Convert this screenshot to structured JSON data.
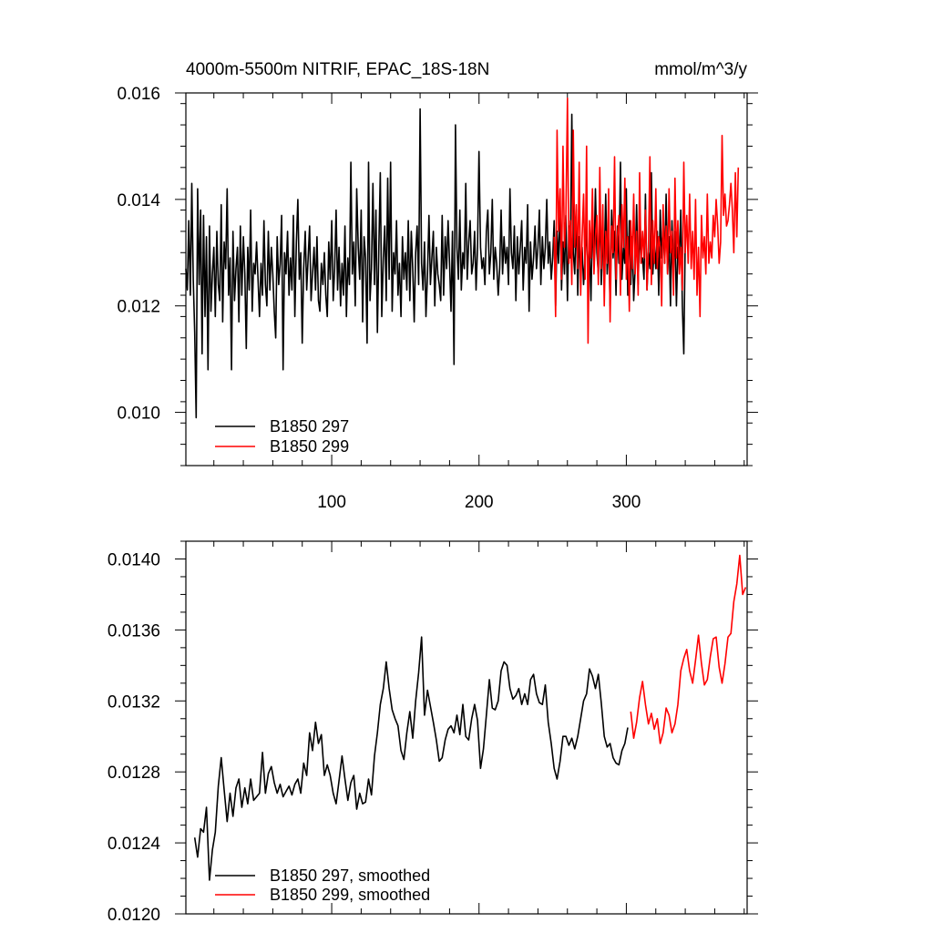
{
  "chart_data": [
    {
      "type": "line",
      "title": "4000m-5500m NITRIF, EPAC_18S-18N",
      "units": "mmol/m^3/y",
      "xlim": [
        1,
        382
      ],
      "ylim": [
        0.009,
        0.016
      ],
      "xticks": [
        100,
        200,
        300
      ],
      "xtick_labels": [
        "100",
        "200",
        "300"
      ],
      "yticks": [
        0.01,
        0.012,
        0.014,
        0.016
      ],
      "ytick_labels": [
        "0.010",
        "0.012",
        "0.014",
        "0.016"
      ],
      "grid": false,
      "legend_position": "bottom-left",
      "series": [
        {
          "name": "B1850 297",
          "color": "#000000",
          "x_start": 1,
          "values": [
            0.0127,
            0.0123,
            0.0136,
            0.0122,
            0.0143,
            0.0125,
            0.0115,
            0.0099,
            0.0142,
            0.0124,
            0.0138,
            0.0111,
            0.0137,
            0.0118,
            0.0133,
            0.0108,
            0.0135,
            0.0119,
            0.0126,
            0.0131,
            0.0118,
            0.0134,
            0.0124,
            0.0121,
            0.0139,
            0.0117,
            0.0132,
            0.0127,
            0.0142,
            0.0122,
            0.0129,
            0.0108,
            0.0134,
            0.0121,
            0.0127,
            0.0131,
            0.0117,
            0.0135,
            0.0122,
            0.0133,
            0.0126,
            0.0112,
            0.0131,
            0.0123,
            0.0138,
            0.0119,
            0.0128,
            0.0126,
            0.0132,
            0.0125,
            0.0118,
            0.0128,
            0.0122,
            0.0136,
            0.0124,
            0.012,
            0.0134,
            0.0123,
            0.0131,
            0.0126,
            0.0119,
            0.0114,
            0.0133,
            0.0124,
            0.0128,
            0.0137,
            0.0108,
            0.013,
            0.0126,
            0.0134,
            0.0122,
            0.0129,
            0.0123,
            0.0137,
            0.0118,
            0.0132,
            0.014,
            0.0125,
            0.013,
            0.0113,
            0.0127,
            0.0134,
            0.0123,
            0.0129,
            0.0135,
            0.0121,
            0.0126,
            0.0131,
            0.0123,
            0.0133,
            0.0121,
            0.0119,
            0.0128,
            0.0124,
            0.013,
            0.0122,
            0.0118,
            0.0132,
            0.0125,
            0.0136,
            0.0121,
            0.0127,
            0.0138,
            0.0123,
            0.0131,
            0.012,
            0.0128,
            0.0122,
            0.0135,
            0.0118,
            0.0129,
            0.0124,
            0.0147,
            0.0126,
            0.0132,
            0.012,
            0.0142,
            0.0131,
            0.0125,
            0.0138,
            0.0117,
            0.0133,
            0.0129,
            0.0113,
            0.0147,
            0.0121,
            0.0127,
            0.0143,
            0.0124,
            0.0138,
            0.0115,
            0.0131,
            0.0145,
            0.0118,
            0.0129,
            0.0135,
            0.0121,
            0.0144,
            0.0125,
            0.0147,
            0.0119,
            0.013,
            0.0126,
            0.0136,
            0.0122,
            0.0128,
            0.0118,
            0.0133,
            0.0125,
            0.013,
            0.0123,
            0.0136,
            0.0121,
            0.0134,
            0.0127,
            0.0117,
            0.013,
            0.0135,
            0.0124,
            0.0157,
            0.0128,
            0.0123,
            0.0132,
            0.0118,
            0.0126,
            0.0137,
            0.0124,
            0.0129,
            0.0134,
            0.012,
            0.0131,
            0.0126,
            0.0124,
            0.0121,
            0.0137,
            0.0122,
            0.0133,
            0.0127,
            0.0136,
            0.0128,
            0.0119,
            0.0134,
            0.0109,
            0.0154,
            0.0131,
            0.0125,
            0.0138,
            0.0123,
            0.013,
            0.0127,
            0.0143,
            0.0125,
            0.0132,
            0.0136,
            0.0126,
            0.0128,
            0.0134,
            0.0123,
            0.0131,
            0.0149,
            0.0131,
            0.0127,
            0.0129,
            0.0124,
            0.0134,
            0.0138,
            0.0126,
            0.013,
            0.014,
            0.0125,
            0.0131,
            0.0128,
            0.0122,
            0.0127,
            0.0138,
            0.0126,
            0.0133,
            0.0128,
            0.0131,
            0.0124,
            0.0142,
            0.013,
            0.0127,
            0.0135,
            0.0121,
            0.0133,
            0.0126,
            0.0131,
            0.0136,
            0.0123,
            0.0131,
            0.0128,
            0.0139,
            0.0119,
            0.0132,
            0.0125,
            0.0129,
            0.0135,
            0.0127,
            0.0131,
            0.0138,
            0.0124,
            0.0133,
            0.0127,
            0.0131,
            0.014,
            0.0128,
            0.0132,
            0.0125,
            0.0129,
            0.0136,
            0.012,
            0.0134,
            0.0128,
            0.0139,
            0.0123,
            0.0132,
            0.0126,
            0.0137,
            0.0121,
            0.0135,
            0.0129,
            0.0156,
            0.013,
            0.0126,
            0.0138,
            0.0122,
            0.0133,
            0.0127,
            0.0131,
            0.0124,
            0.0129,
            0.0135,
            0.0126,
            0.0131,
            0.0121,
            0.0136,
            0.0128,
            0.0142,
            0.013,
            0.0126,
            0.0139,
            0.0124,
            0.0132,
            0.0128,
            0.0141,
            0.0126,
            0.0133,
            0.012,
            0.0138,
            0.0129,
            0.0134,
            0.0122,
            0.0135,
            0.0128,
            0.0147,
            0.0125,
            0.0131,
            0.0128,
            0.0142,
            0.0122,
            0.0136,
            0.0124,
            0.0133,
            0.0121,
            0.0127,
            0.0139,
            0.0124,
            0.0135,
            0.0128,
            0.0129,
            0.0125,
            0.0141,
            0.0123,
            0.013,
            0.0127,
            0.0145,
            0.0126,
            0.0132,
            0.0127,
            0.0134,
            0.0122,
            0.0138,
            0.0129,
            0.0135,
            0.0128,
            0.0141,
            0.0126,
            0.0133,
            0.012,
            0.0136,
            0.0127,
            0.0134,
            0.012,
            0.0131,
            0.0129,
            0.0138,
            0.012,
            0.0111,
            0.0133
          ]
        },
        {
          "name": "B1850 299",
          "color": "#ff0000",
          "x_start": 251,
          "values": [
            0.0133,
            0.0118,
            0.0153,
            0.0134,
            0.0142,
            0.0125,
            0.015,
            0.0131,
            0.0137,
            0.0159,
            0.0128,
            0.0136,
            0.0124,
            0.0153,
            0.0131,
            0.0139,
            0.0127,
            0.0147,
            0.0122,
            0.0133,
            0.0141,
            0.0125,
            0.015,
            0.0113,
            0.0136,
            0.0129,
            0.0142,
            0.0126,
            0.0133,
            0.0137,
            0.0124,
            0.0146,
            0.0127,
            0.0139,
            0.012,
            0.0134,
            0.0128,
            0.0142,
            0.0117,
            0.0135,
            0.013,
            0.0148,
            0.0125,
            0.0133,
            0.0137,
            0.0122,
            0.0139,
            0.0131,
            0.0144,
            0.0125,
            0.0133,
            0.0119,
            0.0136,
            0.0127,
            0.0141,
            0.0126,
            0.0134,
            0.0122,
            0.0145,
            0.0128,
            0.0134,
            0.0129,
            0.0138,
            0.0123,
            0.0131,
            0.0148,
            0.0124,
            0.0136,
            0.0128,
            0.0142,
            0.0127,
            0.0133,
            0.0131,
            0.012,
            0.0139,
            0.0128,
            0.0135,
            0.0126,
            0.0142,
            0.013,
            0.0134,
            0.0122,
            0.0144,
            0.0129,
            0.0136,
            0.0126,
            0.0131,
            0.0123,
            0.0147,
            0.013,
            0.0137,
            0.0128,
            0.0141,
            0.0127,
            0.0134,
            0.0125,
            0.014,
            0.0122,
            0.0131,
            0.0118,
            0.0137,
            0.0129,
            0.0133,
            0.0126,
            0.0141,
            0.0128,
            0.0132,
            0.0129,
            0.0137,
            0.0133,
            0.014,
            0.0135,
            0.0128,
            0.0132,
            0.0152,
            0.0137,
            0.0141,
            0.0135,
            0.0136,
            0.0139,
            0.0143,
            0.0138,
            0.013,
            0.0145,
            0.0133,
            0.0146
          ]
        }
      ]
    },
    {
      "type": "line",
      "title": "",
      "xlim": [
        1,
        382
      ],
      "ylim": [
        0.012,
        0.0141
      ],
      "xticks": [
        100,
        200,
        300
      ],
      "xtick_labels": [],
      "yticks": [
        0.012,
        0.0124,
        0.0128,
        0.0132,
        0.0136,
        0.014
      ],
      "ytick_labels": [
        "0.0120",
        "0.0124",
        "0.0128",
        "0.0132",
        "0.0136",
        "0.0140"
      ],
      "grid": false,
      "legend_position": "bottom-left",
      "series": [
        {
          "name": "B1850 297, smoothed",
          "color": "#000000",
          "x": [
            7,
            9,
            11,
            13,
            15,
            17,
            19,
            21,
            23,
            25,
            27,
            29,
            31,
            33,
            35,
            37,
            39,
            41,
            43,
            45,
            47,
            49,
            51,
            53,
            55,
            57,
            59,
            61,
            63,
            65,
            67,
            69,
            71,
            73,
            75,
            77,
            79,
            81,
            83,
            85,
            87,
            89,
            91,
            93,
            95,
            97,
            99,
            101,
            103,
            105,
            107,
            109,
            111,
            113,
            115,
            117,
            119,
            121,
            123,
            125,
            127,
            129,
            131,
            133,
            135,
            137,
            139,
            141,
            143,
            145,
            147,
            149,
            151,
            153,
            155,
            157,
            159,
            161,
            163,
            165,
            167,
            169,
            171,
            173,
            175,
            177,
            179,
            181,
            183,
            185,
            187,
            189,
            191,
            193,
            195,
            197,
            199,
            201,
            203,
            205,
            207,
            209,
            211,
            213,
            215,
            217,
            219,
            221,
            223,
            225,
            227,
            229,
            231,
            233,
            235,
            237,
            239,
            241,
            243,
            245,
            247,
            249,
            251,
            253,
            255,
            257,
            259,
            261,
            263,
            265,
            267,
            269,
            271,
            273,
            275,
            277,
            279,
            281,
            283,
            285,
            287,
            289,
            291,
            293,
            295,
            297,
            299,
            301
          ],
          "values": [
            0.01243,
            0.01232,
            0.01248,
            0.01246,
            0.0126,
            0.01219,
            0.01236,
            0.01246,
            0.01272,
            0.01288,
            0.0127,
            0.01252,
            0.01268,
            0.01255,
            0.01271,
            0.01276,
            0.0126,
            0.01271,
            0.01262,
            0.01276,
            0.01264,
            0.01266,
            0.01268,
            0.01291,
            0.01268,
            0.01279,
            0.01283,
            0.01274,
            0.01268,
            0.01273,
            0.01266,
            0.01269,
            0.01272,
            0.01267,
            0.01273,
            0.01276,
            0.01268,
            0.01285,
            0.01278,
            0.01302,
            0.01292,
            0.01308,
            0.01296,
            0.01301,
            0.01278,
            0.01284,
            0.01278,
            0.01268,
            0.01262,
            0.01275,
            0.01289,
            0.01276,
            0.01264,
            0.01274,
            0.01278,
            0.01259,
            0.01268,
            0.01262,
            0.01263,
            0.01276,
            0.01267,
            0.01289,
            0.01302,
            0.01318,
            0.01327,
            0.01342,
            0.01327,
            0.01315,
            0.0131,
            0.01306,
            0.01292,
            0.01287,
            0.01302,
            0.01314,
            0.01299,
            0.0132,
            0.01336,
            0.01356,
            0.01312,
            0.01326,
            0.01317,
            0.01308,
            0.01298,
            0.01286,
            0.01288,
            0.01298,
            0.01304,
            0.01306,
            0.01302,
            0.01312,
            0.01301,
            0.01318,
            0.013,
            0.01298,
            0.0131,
            0.01318,
            0.01309,
            0.01282,
            0.01293,
            0.01312,
            0.01332,
            0.01316,
            0.01315,
            0.0132,
            0.01337,
            0.01342,
            0.0134,
            0.01327,
            0.01321,
            0.01323,
            0.01327,
            0.01318,
            0.01324,
            0.01318,
            0.01332,
            0.01335,
            0.01324,
            0.01319,
            0.01318,
            0.01329,
            0.01308,
            0.01296,
            0.01282,
            0.01276,
            0.01286,
            0.013,
            0.013,
            0.01295,
            0.01299,
            0.01293,
            0.013,
            0.0131,
            0.0132,
            0.01324,
            0.01338,
            0.01334,
            0.01327,
            0.01335,
            0.01319,
            0.013,
            0.01294,
            0.01296,
            0.01288,
            0.01285,
            0.01284,
            0.01292,
            0.01296,
            0.01305
          ]
        },
        {
          "name": "B1850 299, smoothed",
          "color": "#ff0000",
          "x": [
            303,
            305,
            307,
            309,
            311,
            313,
            315,
            317,
            319,
            321,
            323,
            325,
            327,
            329,
            331,
            333,
            335,
            337,
            339,
            341,
            343,
            345,
            347,
            349,
            351,
            353,
            355,
            357,
            359,
            361,
            363,
            365,
            367,
            369,
            371,
            373,
            375,
            377,
            379,
            381
          ],
          "values": [
            0.01314,
            0.01299,
            0.01308,
            0.01322,
            0.01331,
            0.01318,
            0.01307,
            0.01313,
            0.01304,
            0.0131,
            0.01296,
            0.01302,
            0.01316,
            0.01312,
            0.01302,
            0.01307,
            0.01318,
            0.01337,
            0.01344,
            0.01349,
            0.01337,
            0.0133,
            0.01343,
            0.01357,
            0.01341,
            0.01329,
            0.01332,
            0.01345,
            0.01355,
            0.01356,
            0.01339,
            0.0133,
            0.01341,
            0.01356,
            0.01358,
            0.01376,
            0.01386,
            0.01402,
            0.0138,
            0.01384
          ]
        }
      ]
    }
  ]
}
